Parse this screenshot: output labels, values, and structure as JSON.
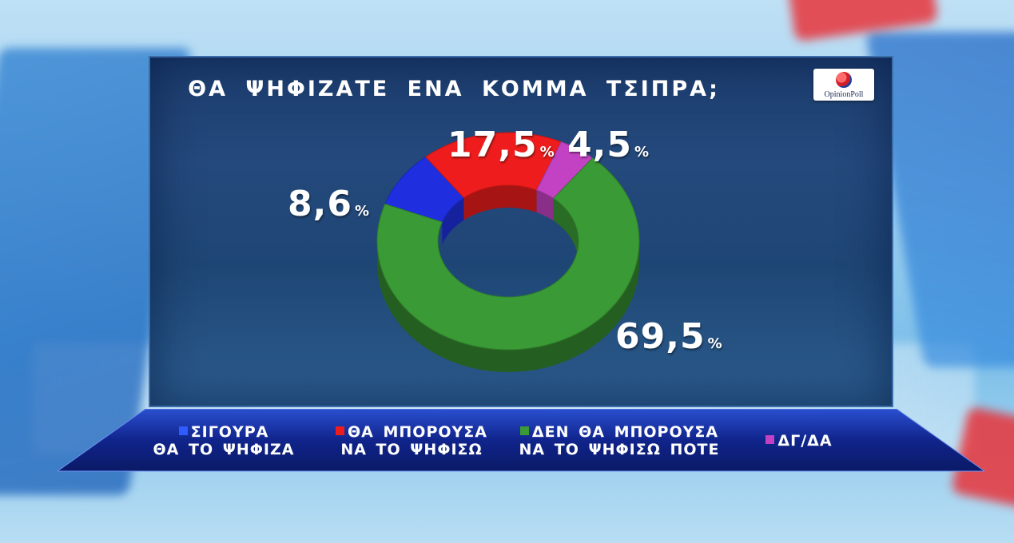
{
  "chart_data": {
    "type": "pie",
    "title": "ΘΑ ΨΗΦΙΖΑΤΕ ΕΝΑ ΚΟΜΜΑ ΤΣΙΠΡΑ;",
    "series": [
      {
        "name": "ΣΙΓΟΥΡΑ ΘΑ ΤΟ ΨΗΦΙΖΑ",
        "value": 8.6,
        "label": "8,6",
        "color": "#1f2fe0"
      },
      {
        "name": "ΘΑ ΜΠΟΡΟΥΣΑ ΝΑ ΤΟ ΨΗΦΙΣΩ",
        "value": 17.5,
        "label": "17,5",
        "color": "#ee1c1c"
      },
      {
        "name": "ΔΕΝ ΘΑ ΜΠΟΡΟΥΣΑ ΝΑ ΤΟ ΨΗΦΙΣΩ ΠΟΤΕ",
        "value": 69.5,
        "label": "69,5",
        "color": "#3a9a35"
      },
      {
        "name": "ΔΓ/ΔΑ",
        "value": 4.5,
        "label": "4,5",
        "color": "#c342c3"
      }
    ],
    "unit": "%",
    "legend_position": "bottom"
  },
  "logo_text": "OpinionPoll",
  "legend": [
    {
      "line1": "ΣΙΓΟΥΡΑ",
      "line2": "ΘΑ ΤΟ ΨΗΦΙΖΑ"
    },
    {
      "line1": "ΘΑ  ΜΠΟΡΟΥΣΑ",
      "line2": "ΝΑ  ΤΟ  ΨΗΦΙΣΩ"
    },
    {
      "line1": "ΔΕΝ  ΘΑ ΜΠΟΡΟΥΣΑ",
      "line2": "ΝΑ ΤΟ ΨΗΦΙΣΩ ΠΟΤΕ"
    },
    {
      "line1": "ΔΓ/ΔΑ",
      "line2": ""
    }
  ]
}
